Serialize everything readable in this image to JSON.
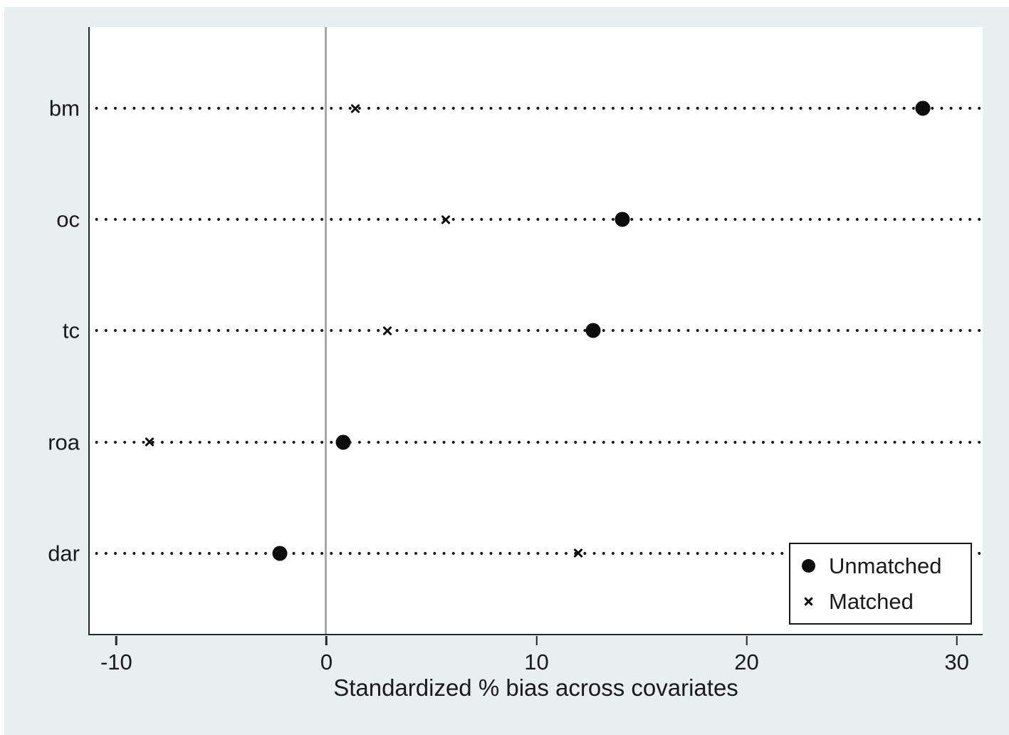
{
  "colors": {
    "canvas_bg": "#e9eff1",
    "plot_bg": "#ffffff",
    "axis": "#262626",
    "zero_line": "#a8a8a8",
    "marker": "#0d0d0d",
    "text": "#1a1a1a"
  },
  "chart_data": {
    "type": "scatter",
    "subtype": "horizontal-dot-plot",
    "title": "",
    "xlabel": "Standardized % bias across covariates",
    "categories": [
      "bm",
      "oc",
      "tc",
      "roa",
      "dar"
    ],
    "series": [
      {
        "name": "Unmatched",
        "marker": "circle",
        "values": [
          28.4,
          14.1,
          12.7,
          0.8,
          -2.2
        ]
      },
      {
        "name": "Matched",
        "marker": "x",
        "values": [
          1.4,
          5.7,
          2.9,
          -8.4,
          12.0
        ]
      }
    ],
    "xlim": [
      -11.25,
      31.25
    ],
    "xticks": [
      -10,
      0,
      10,
      20,
      30
    ],
    "reference_line_x": 0,
    "grid": "dotted-horizontal-rows",
    "legend_position": "bottom-right"
  }
}
